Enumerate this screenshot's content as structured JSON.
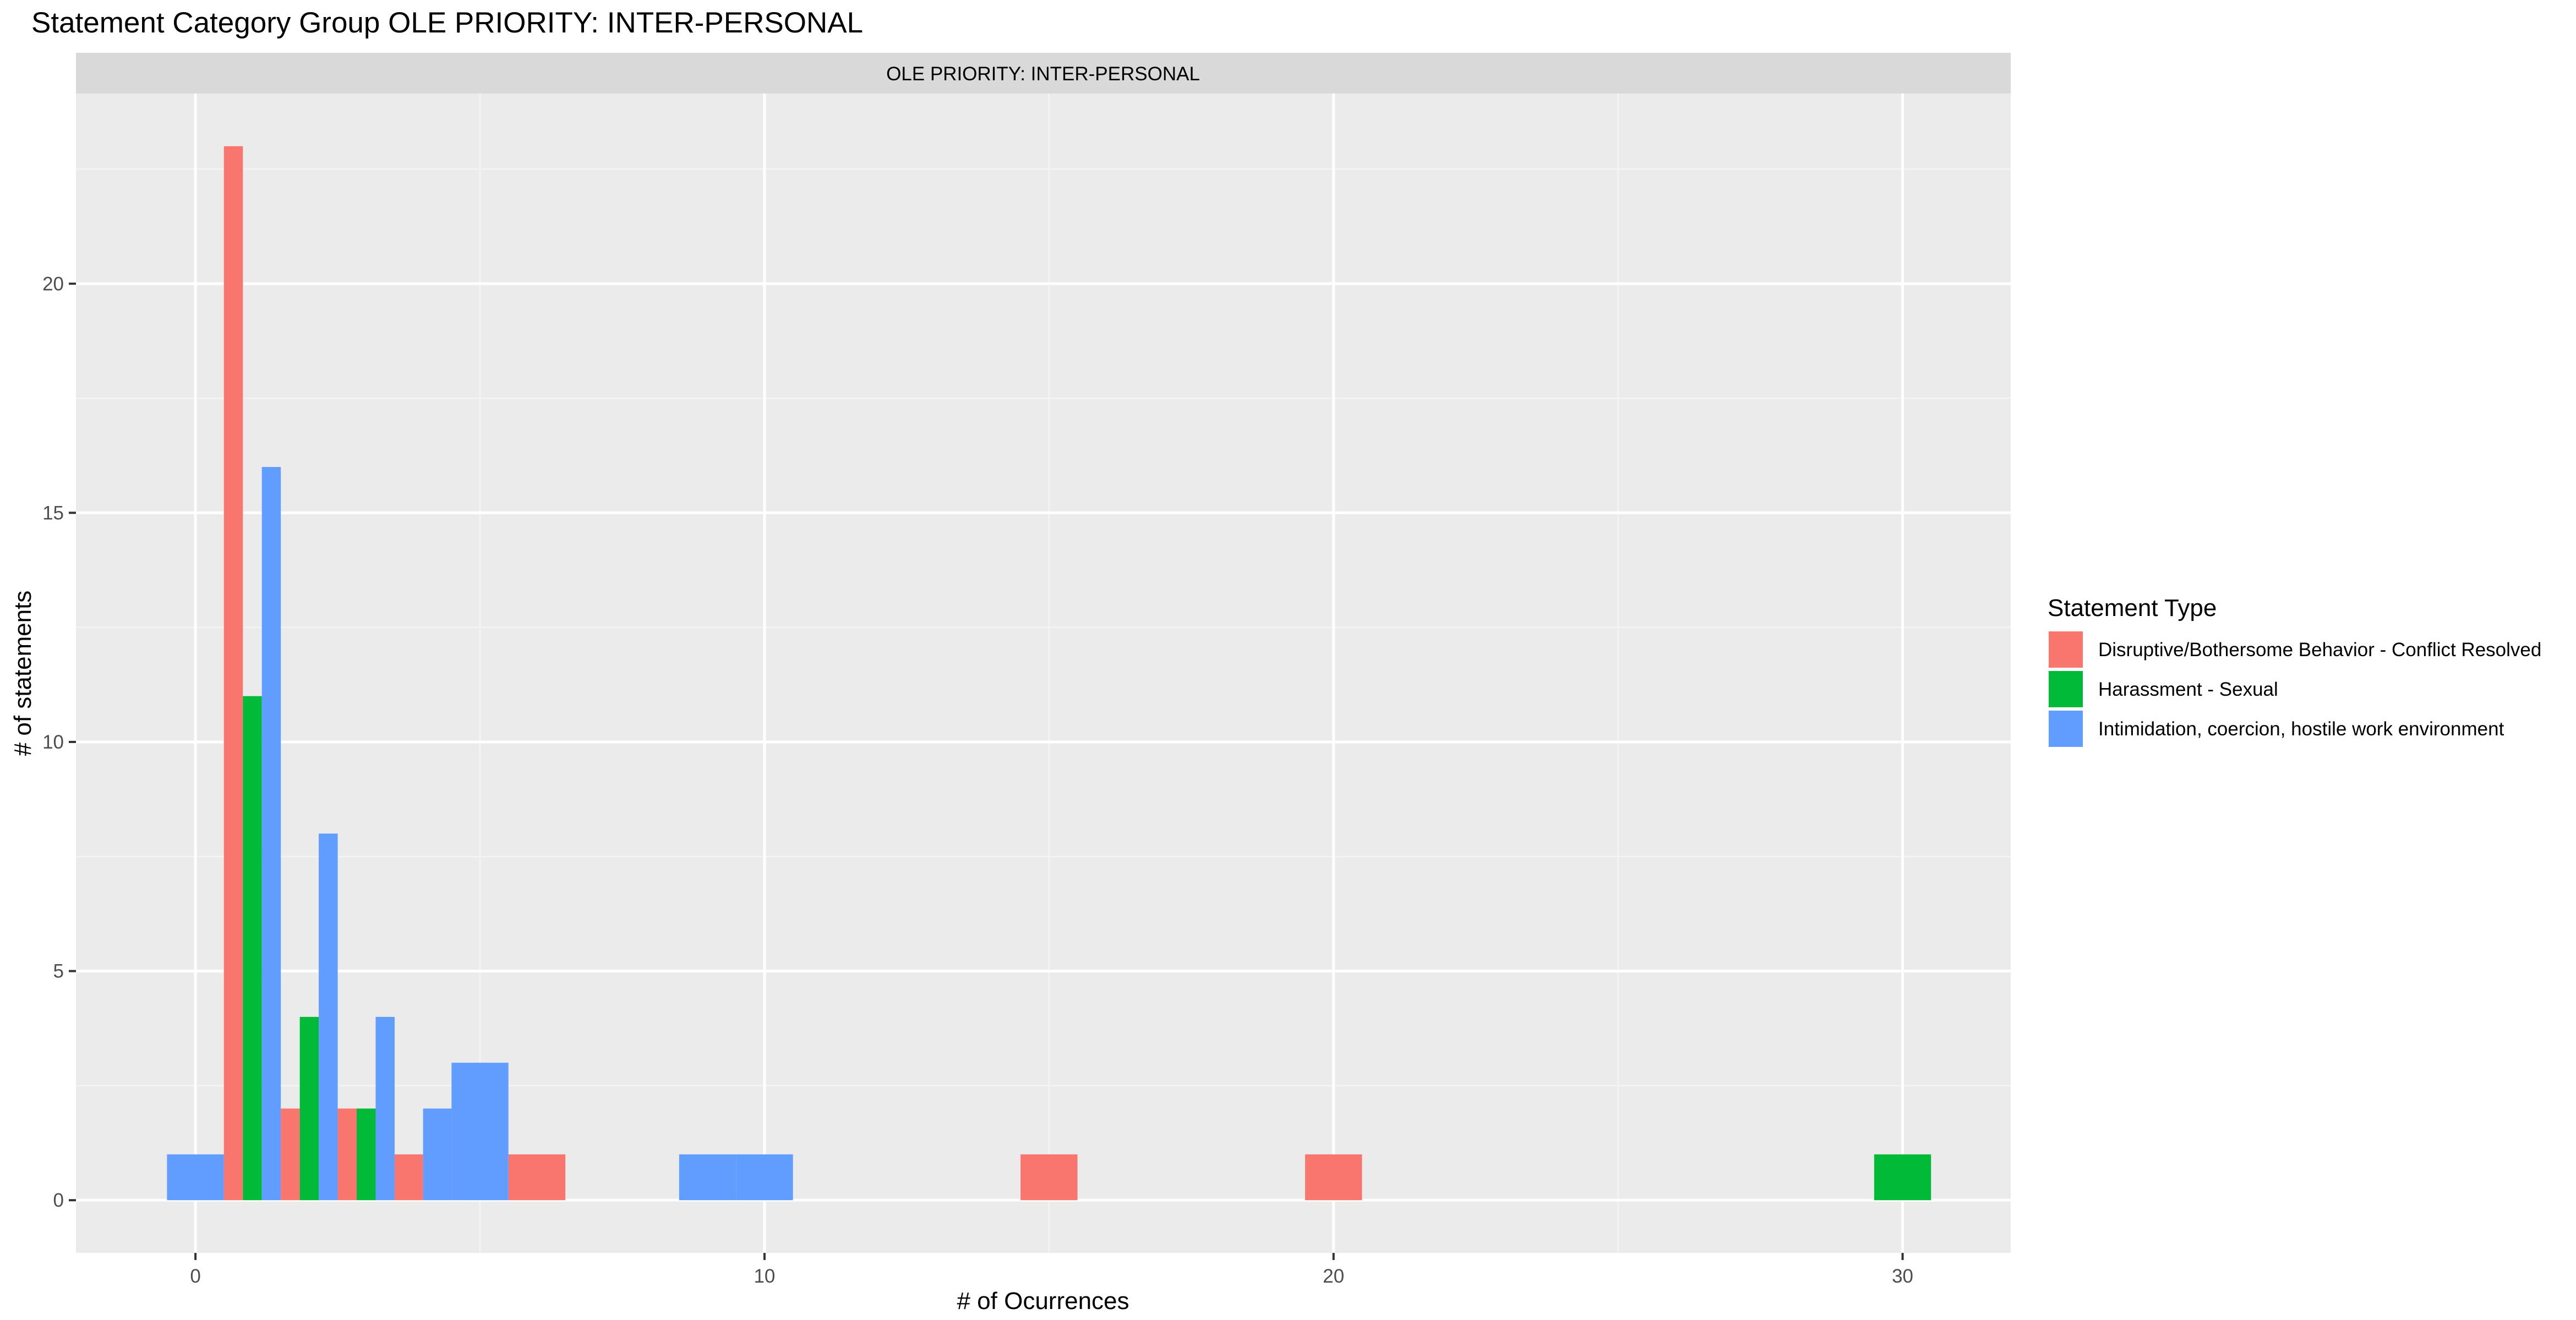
{
  "chart_data": {
    "type": "bar",
    "title": "Statement Category Group OLE PRIORITY: INTER-PERSONAL",
    "facet_label": "OLE PRIORITY: INTER-PERSONAL",
    "xlabel": "# of Ocurrences",
    "ylabel": "# of statements",
    "xlim": [
      -2.1,
      31.9
    ],
    "ylim": [
      -1.15,
      24.15
    ],
    "x_ticks": [
      0,
      10,
      20,
      30
    ],
    "y_ticks": [
      0,
      5,
      10,
      15,
      20
    ],
    "grid": true,
    "legend": {
      "title": "Statement Type",
      "position": "right"
    },
    "series": [
      {
        "name": "Disruptive/Bothersome Behavior - Conflict Resolved",
        "color": "#F8766D",
        "points": [
          [
            1,
            23
          ],
          [
            2,
            2
          ],
          [
            3,
            2
          ],
          [
            4,
            1
          ],
          [
            6,
            1
          ],
          [
            15,
            1
          ],
          [
            20,
            1
          ]
        ]
      },
      {
        "name": "Harassment - Sexual",
        "color": "#00BA38",
        "points": [
          [
            1,
            11
          ],
          [
            2,
            4
          ],
          [
            3,
            2
          ],
          [
            30,
            1
          ]
        ]
      },
      {
        "name": "Intimidation, coercion, hostile work environment",
        "color": "#619CFF",
        "points": [
          [
            0,
            1
          ],
          [
            1,
            16
          ],
          [
            2,
            8
          ],
          [
            3,
            4
          ],
          [
            4,
            2
          ],
          [
            5,
            3
          ],
          [
            9,
            1
          ],
          [
            10,
            1
          ]
        ]
      }
    ]
  }
}
